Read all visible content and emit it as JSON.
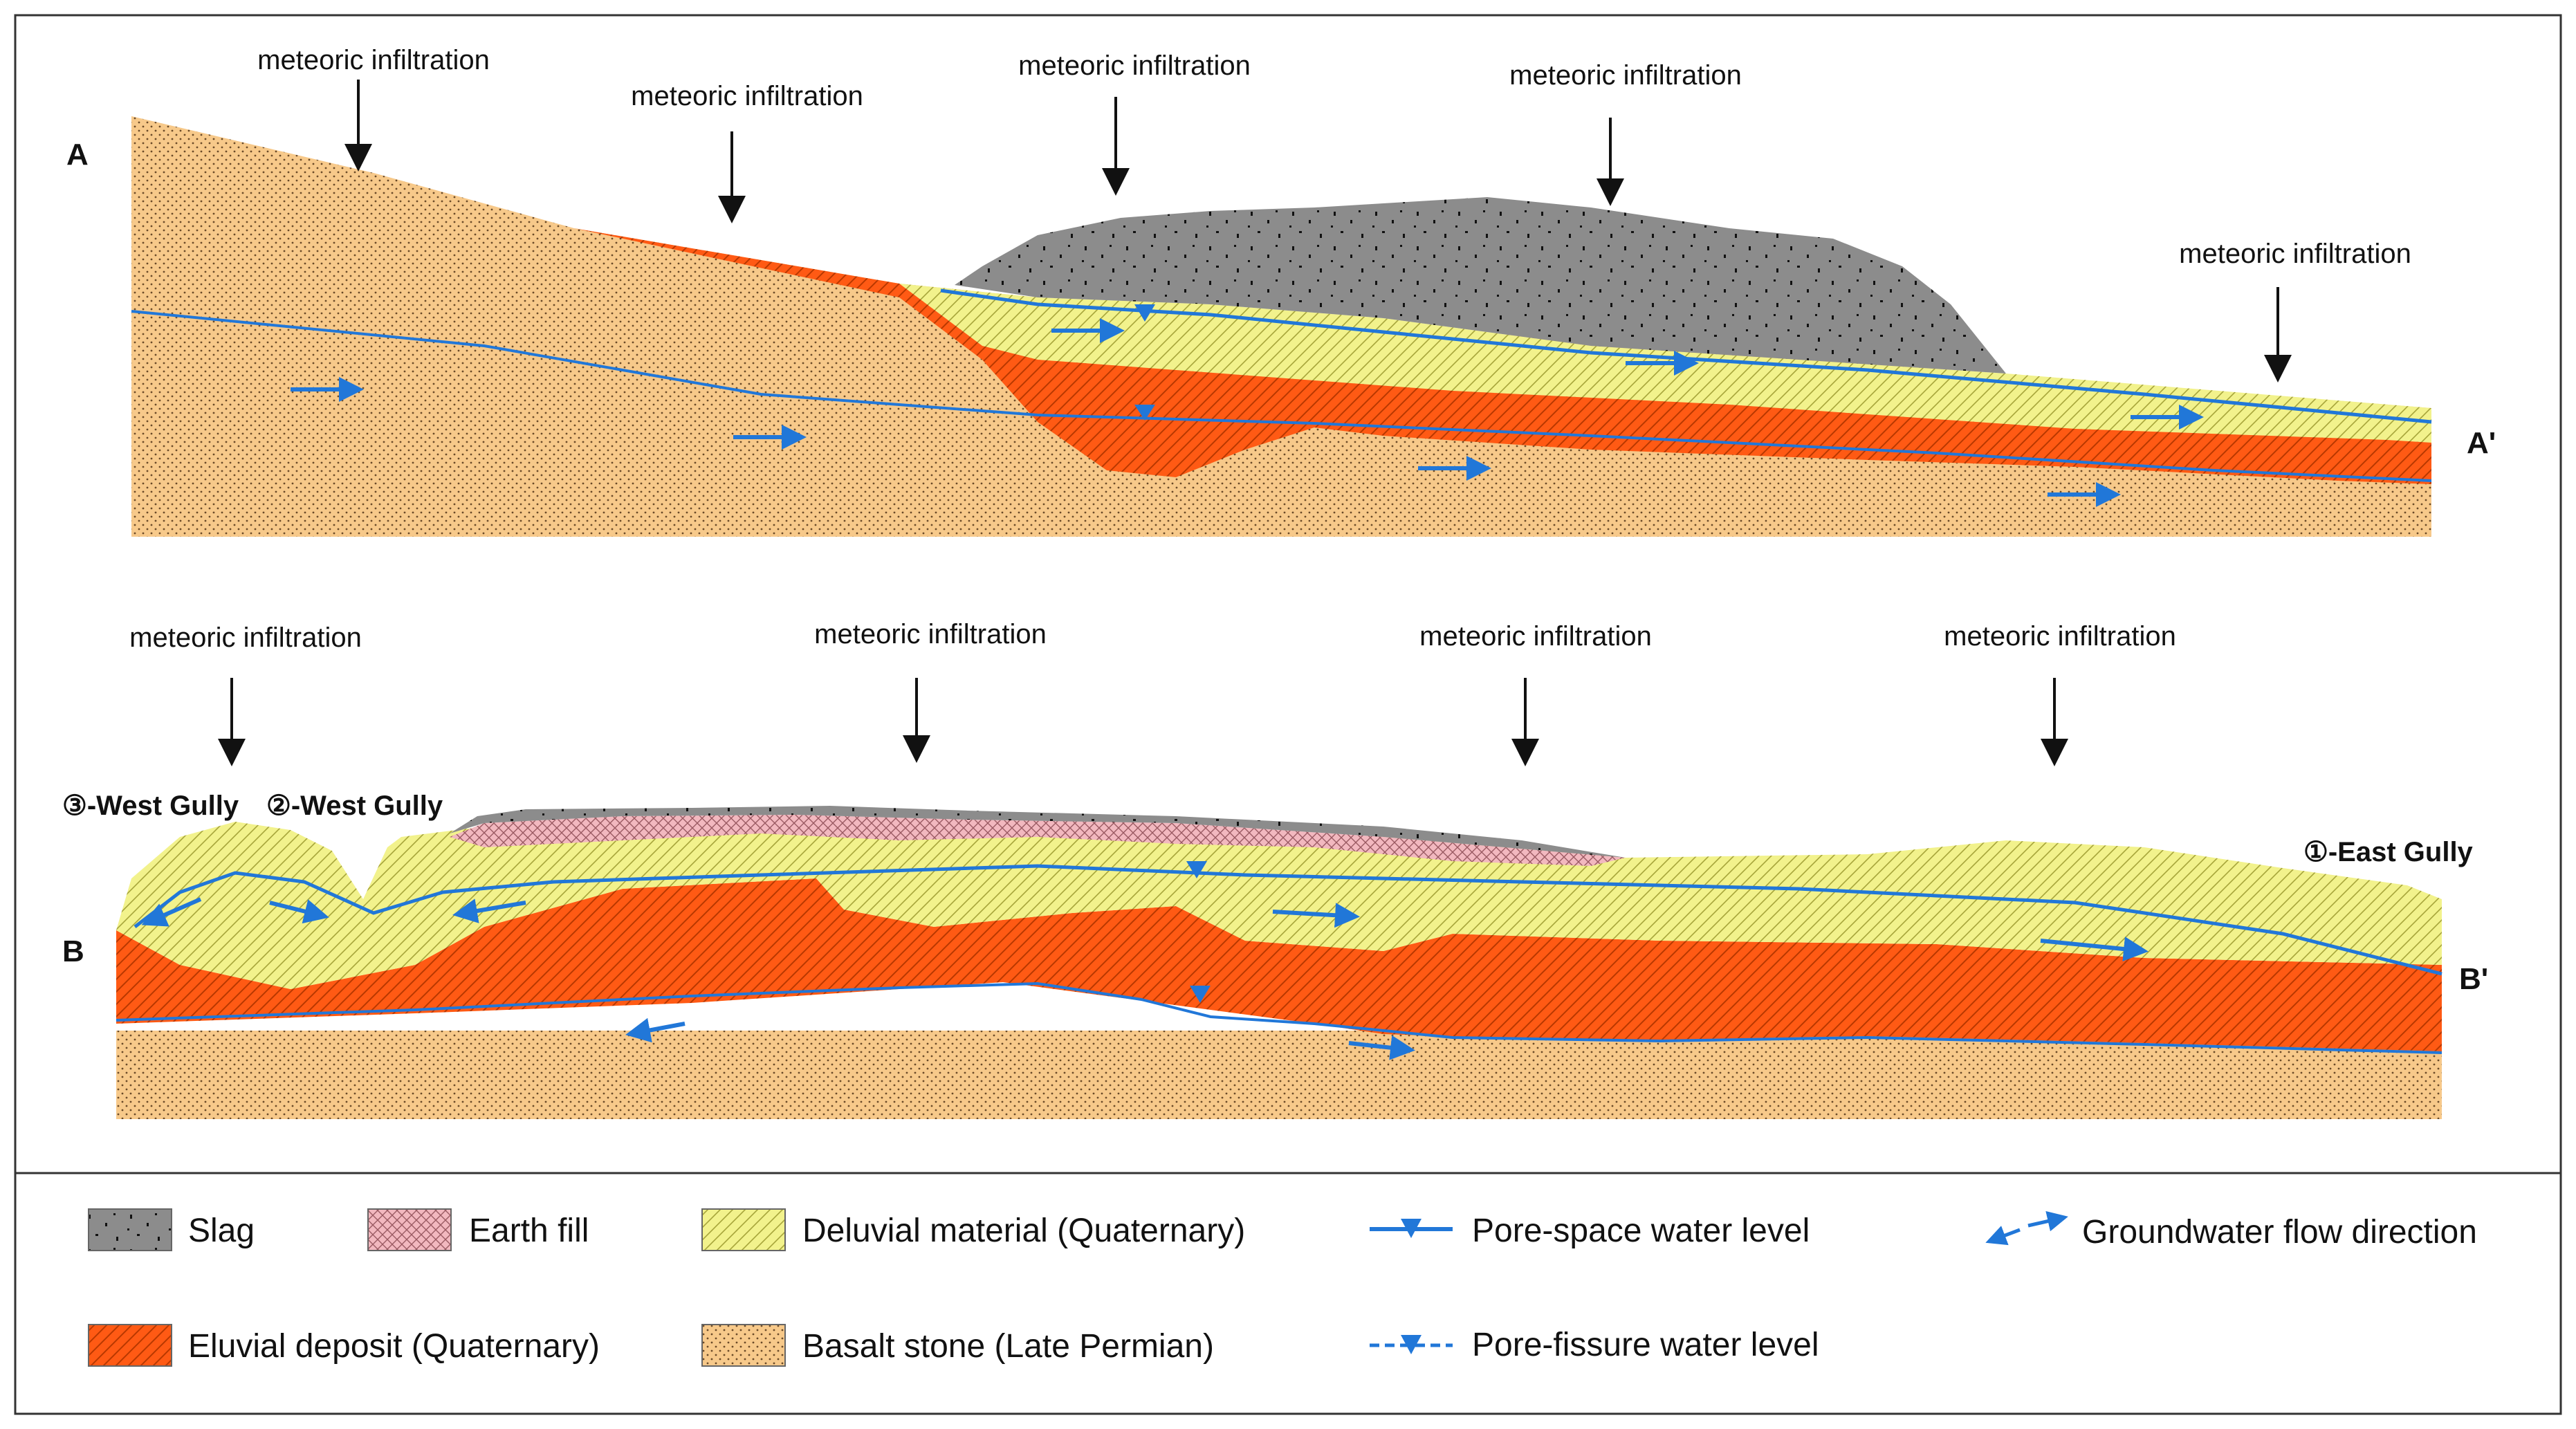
{
  "section_a": {
    "label_left": "A",
    "label_right": "A'",
    "infiltration_labels": [
      "meteoric infiltration",
      "meteoric infiltration",
      "meteoric infiltration",
      "meteoric infiltration",
      "meteoric infiltration"
    ]
  },
  "section_b": {
    "label_left": "B",
    "label_right": "B'",
    "infiltration_labels": [
      "meteoric infiltration",
      "meteoric infiltration",
      "meteoric infiltration",
      "meteoric infiltration"
    ],
    "gullies": [
      "③-West Gully",
      "②-West Gully",
      "①-East Gully"
    ]
  },
  "legend": {
    "items": [
      {
        "label": "Slag",
        "swatch": "slag"
      },
      {
        "label": "Earth fill",
        "swatch": "earthfill"
      },
      {
        "label": "Deluvial material (Quaternary)",
        "swatch": "deluvial"
      },
      {
        "label": "Pore-space water level",
        "swatch": "pore-space"
      },
      {
        "label": "Groundwater flow direction",
        "swatch": "flow"
      },
      {
        "label": "Eluvial deposit (Quaternary)",
        "swatch": "eluvial"
      },
      {
        "label": "Basalt stone (Late Permian)",
        "swatch": "basalt"
      },
      {
        "label": "Pore-fissure water level",
        "swatch": "pore-fissure"
      }
    ]
  },
  "colors": {
    "slag": "#8c8c8c",
    "earth_fill": "#f2b8bf",
    "deluvial": "#f2f28c",
    "eluvial": "#ff5a14",
    "basalt": "#f7c98a",
    "water": "#2177d8"
  }
}
